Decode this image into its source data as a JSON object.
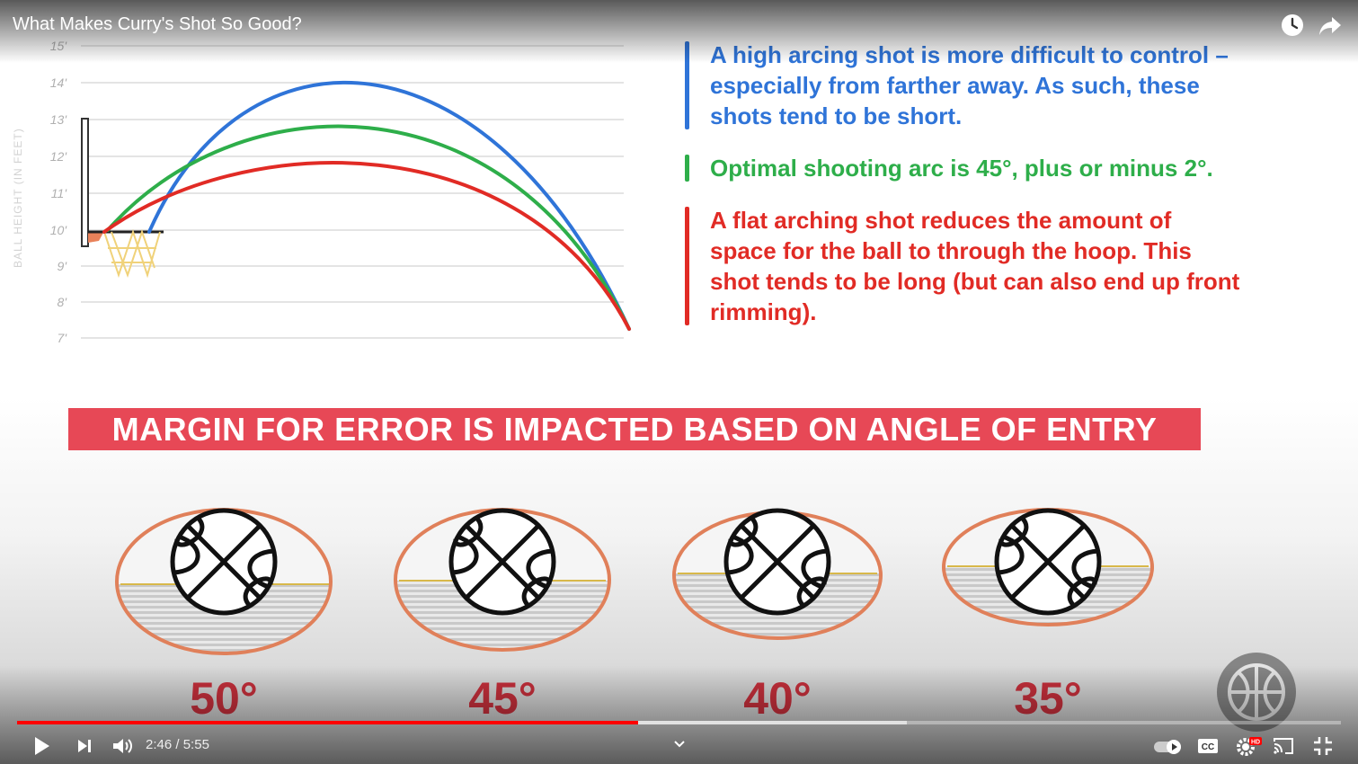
{
  "player": {
    "title": "What Makes Curry's Shot So Good?",
    "time_current": "2:46",
    "time_separator": " / ",
    "time_total": "5:55",
    "progress_fraction": 0.469,
    "buffered_fraction": 0.672,
    "accent_color": "#ff0000",
    "icons": [
      "watch-later-icon",
      "share-icon",
      "play-icon",
      "next-icon",
      "volume-icon",
      "chevron-down-icon",
      "autoplay-toggle",
      "captions-icon",
      "settings-icon",
      "cast-icon",
      "exit-fullscreen-icon"
    ],
    "settings_badge": "HD",
    "captions_label": "CC"
  },
  "chart": {
    "y_axis_title": "BALL HEIGHT (IN FEET)",
    "y_ticks": [
      "15'",
      "14'",
      "13'",
      "12'",
      "11'",
      "10'",
      "9'",
      "8'",
      "7'"
    ],
    "series_colors": {
      "high_arc": "#2f74d8",
      "optimal_arc": "#2eae4a",
      "flat_arc": "#e12b25"
    }
  },
  "notes": [
    {
      "color": "blue",
      "text": "A high arcing shot is more difficult to control – especially from farther away. As such, these shots tend to be short."
    },
    {
      "color": "green",
      "text": "Optimal shooting arc is 45°, plus or minus 2°."
    },
    {
      "color": "red",
      "text": "A flat arching shot reduces the amount of space for the ball to through the hoop. This shot tends to be long (but can also end up front rimming)."
    }
  ],
  "banner": {
    "text": "MARGIN FOR ERROR IS IMPACTED BASED ON ANGLE OF ENTRY",
    "color": "#e74856"
  },
  "angles": [
    {
      "label": "50°"
    },
    {
      "label": "45°"
    },
    {
      "label": "40°"
    },
    {
      "label": "35°"
    }
  ]
}
